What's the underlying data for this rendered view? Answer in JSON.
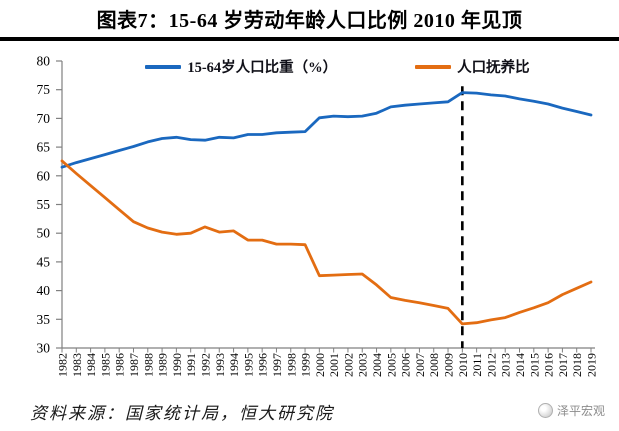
{
  "page": {
    "title": "图表7：15-64 岁劳动年龄人口比例 2010 年见顶",
    "source_note": "资料来源：国家统计局，恒大研究院",
    "watermark_label": "泽平宏观"
  },
  "colors": {
    "share_line": "#1a68bf",
    "dependency_line": "#e36d12",
    "axis": "#808080",
    "tick_label": "#000000",
    "dashed_annotation": "#000000",
    "rule": "#000000"
  },
  "chart_data": {
    "type": "line",
    "title": "",
    "xlabel": "",
    "ylabel": "",
    "ylim": [
      30,
      80
    ],
    "yticks": [
      30,
      35,
      40,
      45,
      50,
      55,
      60,
      65,
      70,
      75,
      80
    ],
    "grid": false,
    "legend_position": "top",
    "x": [
      1982,
      1983,
      1984,
      1985,
      1986,
      1987,
      1988,
      1989,
      1990,
      1991,
      1992,
      1993,
      1994,
      1995,
      1996,
      1997,
      1998,
      1999,
      2000,
      2001,
      2002,
      2003,
      2004,
      2005,
      2006,
      2007,
      2008,
      2009,
      2010,
      2011,
      2012,
      2013,
      2014,
      2015,
      2016,
      2017,
      2018,
      2019
    ],
    "series": [
      {
        "name": "15-64岁人口比重（%）",
        "color": "#1a68bf",
        "values": [
          61.5,
          62.3,
          63.0,
          63.7,
          64.4,
          65.1,
          65.9,
          66.5,
          66.7,
          66.3,
          66.2,
          66.7,
          66.6,
          67.2,
          67.2,
          67.5,
          67.6,
          67.7,
          70.1,
          70.4,
          70.3,
          70.4,
          70.9,
          72.0,
          72.3,
          72.5,
          72.7,
          72.9,
          74.5,
          74.4,
          74.1,
          73.9,
          73.4,
          73.0,
          72.5,
          71.8,
          71.2,
          70.6
        ]
      },
      {
        "name": "人口抚养比",
        "color": "#e36d12",
        "values": [
          62.6,
          60.4,
          58.3,
          56.2,
          54.1,
          52.0,
          50.9,
          50.2,
          49.8,
          50.0,
          51.1,
          50.2,
          50.4,
          48.8,
          48.8,
          48.1,
          48.1,
          48.0,
          42.6,
          42.7,
          42.8,
          42.9,
          41.0,
          38.8,
          38.3,
          37.9,
          37.4,
          36.9,
          34.2,
          34.4,
          34.9,
          35.3,
          36.2,
          37.0,
          37.9,
          39.3,
          40.4,
          41.5
        ]
      }
    ],
    "annotations": [
      {
        "type": "vline-dashed",
        "x": 2010,
        "label": ""
      }
    ]
  }
}
